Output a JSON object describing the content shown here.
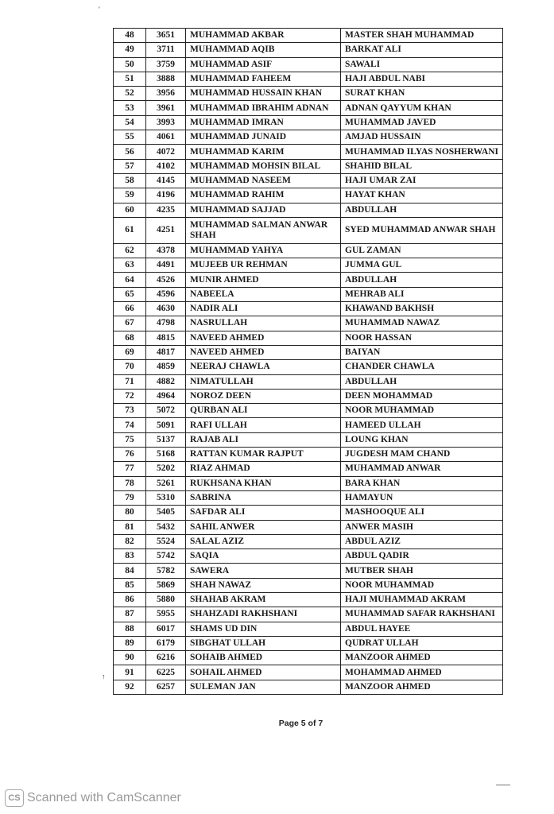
{
  "table": {
    "rows": [
      [
        "48",
        "3651",
        "MUHAMMAD AKBAR",
        "MASTER SHAH MUHAMMAD"
      ],
      [
        "49",
        "3711",
        "MUHAMMAD AQIB",
        "BARKAT ALI"
      ],
      [
        "50",
        "3759",
        "MUHAMMAD ASIF",
        "SAWALI"
      ],
      [
        "51",
        "3888",
        "MUHAMMAD FAHEEM",
        "HAJI ABDUL NABI"
      ],
      [
        "52",
        "3956",
        "MUHAMMAD HUSSAIN KHAN",
        "SURAT KHAN"
      ],
      [
        "53",
        "3961",
        "MUHAMMAD IBRAHIM ADNAN",
        "ADNAN QAYYUM KHAN"
      ],
      [
        "54",
        "3993",
        "MUHAMMAD IMRAN",
        "MUHAMMAD JAVED"
      ],
      [
        "55",
        "4061",
        "MUHAMMAD JUNAID",
        "AMJAD HUSSAIN"
      ],
      [
        "56",
        "4072",
        "MUHAMMAD KARIM",
        "MUHAMMAD ILYAS NOSHERWANI"
      ],
      [
        "57",
        "4102",
        "MUHAMMAD MOHSIN BILAL",
        "SHAHID BILAL"
      ],
      [
        "58",
        "4145",
        "MUHAMMAD NASEEM",
        "HAJI UMAR ZAI"
      ],
      [
        "59",
        "4196",
        "MUHAMMAD RAHIM",
        "HAYAT KHAN"
      ],
      [
        "60",
        "4235",
        "MUHAMMAD SAJJAD",
        "ABDULLAH"
      ],
      [
        "61",
        "4251",
        "MUHAMMAD SALMAN ANWAR SHAH",
        "SYED MUHAMMAD ANWAR SHAH"
      ],
      [
        "62",
        "4378",
        "MUHAMMAD YAHYA",
        "GUL ZAMAN"
      ],
      [
        "63",
        "4491",
        "MUJEEB UR REHMAN",
        "JUMMA GUL"
      ],
      [
        "64",
        "4526",
        "MUNIR AHMED",
        "ABDULLAH"
      ],
      [
        "65",
        "4596",
        "NABEELA",
        "MEHRAB ALI"
      ],
      [
        "66",
        "4630",
        "NADIR ALI",
        "KHAWAND BAKHSH"
      ],
      [
        "67",
        "4798",
        "NASRULLAH",
        "MUHAMMAD NAWAZ"
      ],
      [
        "68",
        "4815",
        "NAVEED AHMED",
        "NOOR HASSAN"
      ],
      [
        "69",
        "4817",
        "NAVEED AHMED",
        "BAIYAN"
      ],
      [
        "70",
        "4859",
        "NEERAJ CHAWLA",
        "CHANDER CHAWLA"
      ],
      [
        "71",
        "4882",
        "NIMATULLAH",
        "ABDULLAH"
      ],
      [
        "72",
        "4964",
        "NOROZ DEEN",
        "DEEN MOHAMMAD"
      ],
      [
        "73",
        "5072",
        "QURBAN ALI",
        "NOOR MUHAMMAD"
      ],
      [
        "74",
        "5091",
        "RAFI ULLAH",
        "HAMEED ULLAH"
      ],
      [
        "75",
        "5137",
        "RAJAB ALI",
        "LOUNG KHAN"
      ],
      [
        "76",
        "5168",
        "RATTAN KUMAR RAJPUT",
        "JUGDESH MAM CHAND"
      ],
      [
        "77",
        "5202",
        "RIAZ AHMAD",
        "MUHAMMAD ANWAR"
      ],
      [
        "78",
        "5261",
        "RUKHSANA KHAN",
        "BARA KHAN"
      ],
      [
        "79",
        "5310",
        "SABRINA",
        "HAMAYUN"
      ],
      [
        "80",
        "5405",
        "SAFDAR ALI",
        "MASHOOQUE ALI"
      ],
      [
        "81",
        "5432",
        "SAHIL ANWER",
        "ANWER MASIH"
      ],
      [
        "82",
        "5524",
        "SALAL AZIZ",
        "ABDUL AZIZ"
      ],
      [
        "83",
        "5742",
        "SAQIA",
        "ABDUL QADIR"
      ],
      [
        "84",
        "5782",
        "SAWERA",
        "MUTBER SHAH"
      ],
      [
        "85",
        "5869",
        "SHAH NAWAZ",
        "NOOR MUHAMMAD"
      ],
      [
        "86",
        "5880",
        "SHAHAB AKRAM",
        "HAJI MUHAMMAD AKRAM"
      ],
      [
        "87",
        "5955",
        "SHAHZADI RAKHSHANI",
        "MUHAMMAD SAFAR RAKHSHANI"
      ],
      [
        "88",
        "6017",
        "SHAMS UD DIN",
        "ABDUL HAYEE"
      ],
      [
        "89",
        "6179",
        "SIBGHAT ULLAH",
        "QUDRAT ULLAH"
      ],
      [
        "90",
        "6216",
        "SOHAIB AHMED",
        "MANZOOR AHMED"
      ],
      [
        "91",
        "6225",
        "SOHAIL AHMED",
        "MOHAMMAD AHMED"
      ],
      [
        "92",
        "6257",
        "SULEMAN JAN",
        "MANZOOR AHMED"
      ]
    ]
  },
  "footer": {
    "page_label": "Page 5 of 7"
  },
  "watermark": {
    "logo": "CS",
    "text": "Scanned with CamScanner"
  }
}
